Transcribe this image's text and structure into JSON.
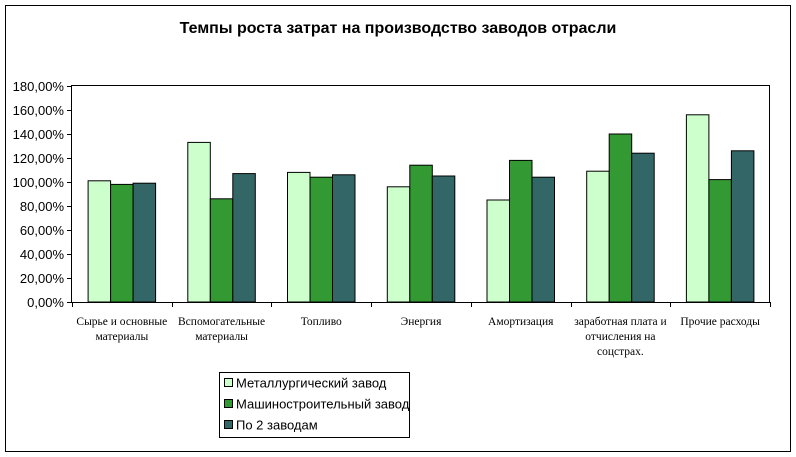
{
  "chart_data": {
    "type": "bar",
    "title": "Темпы роста затрат на производство заводов отрасли",
    "xlabel": "",
    "ylabel": "",
    "ylim": [
      0,
      180
    ],
    "y_ticks": [
      "0,00%",
      "20,00%",
      "40,00%",
      "60,00%",
      "80,00%",
      "100,00%",
      "120,00%",
      "140,00%",
      "160,00%",
      "180,00%"
    ],
    "categories": [
      [
        "Сырье и основные",
        "материалы"
      ],
      [
        "Вспомогательные",
        "материалы"
      ],
      [
        "Топливо"
      ],
      [
        "Энергия"
      ],
      [
        "Амортизация"
      ],
      [
        "заработная плата и",
        "отчисления на",
        "соцстрах."
      ],
      [
        "Прочие расходы"
      ]
    ],
    "series": [
      {
        "name": "Металлургический завод",
        "color": "#ccffcc",
        "values": [
          101,
          133,
          108,
          96,
          85,
          109,
          156
        ]
      },
      {
        "name": "Машиностроительный завод",
        "color": "#339933",
        "values": [
          98,
          86,
          104,
          114,
          118,
          140,
          102
        ]
      },
      {
        "name": "По 2 заводам",
        "color": "#336666",
        "values": [
          99,
          107,
          106,
          105,
          104,
          124,
          126
        ]
      }
    ],
    "grid": false,
    "legend_position": "bottom"
  }
}
